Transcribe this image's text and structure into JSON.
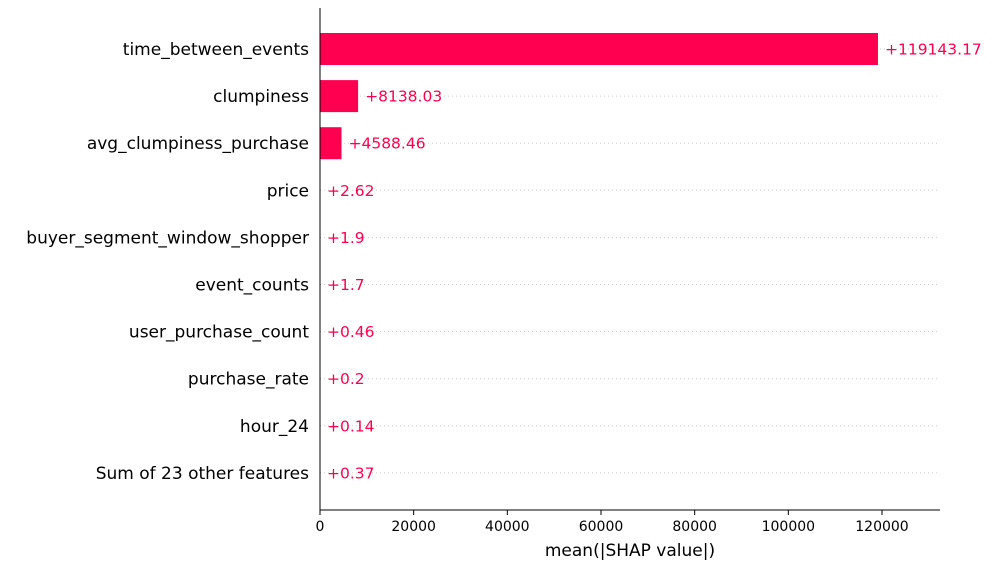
{
  "chart_data": {
    "type": "bar",
    "orientation": "horizontal",
    "categories": [
      "time_between_events",
      "clumpiness",
      "avg_clumpiness_purchase",
      "price",
      "buyer_segment_window_shopper",
      "event_counts",
      "user_purchase_count",
      "purchase_rate",
      "hour_24",
      "Sum of 23 other features"
    ],
    "values": [
      119143.17,
      8138.03,
      4588.46,
      2.62,
      1.9,
      1.7,
      0.46,
      0.2,
      0.14,
      0.37
    ],
    "value_labels": [
      "+119143.17",
      "+8138.03",
      "+4588.46",
      "+2.62",
      "+1.9",
      "+1.7",
      "+0.46",
      "+0.2",
      "+0.14",
      "+0.37"
    ],
    "xlabel": "mean(|SHAP value|)",
    "xlim": [
      0,
      131000
    ],
    "xticks": [
      0,
      20000,
      40000,
      60000,
      80000,
      100000,
      120000
    ],
    "xtick_labels": [
      "0",
      "20000",
      "40000",
      "60000",
      "80000",
      "100000",
      "120000"
    ],
    "grid": "dotted horizontal lines per row",
    "colors": {
      "bar": "#ff0051",
      "value_text": "#ff0051",
      "axis": "#000000",
      "grid": "#cccccc"
    }
  }
}
